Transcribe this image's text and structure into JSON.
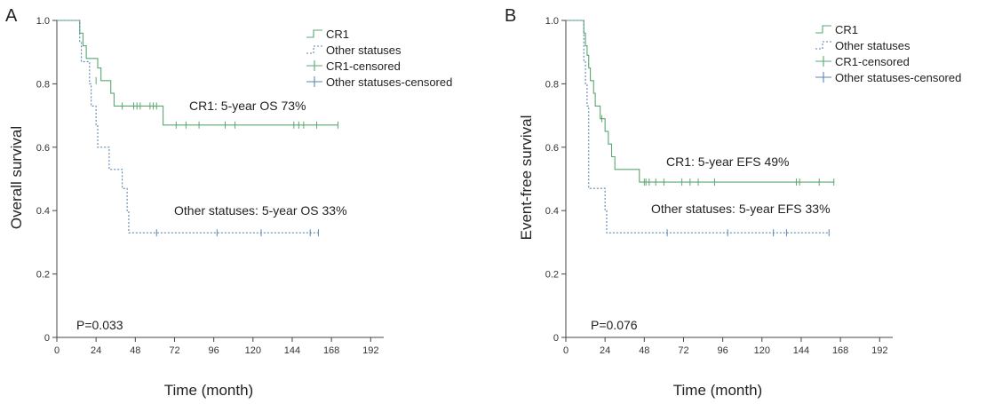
{
  "colors": {
    "cr1": "#5aa870",
    "other": "#5b85b0"
  },
  "chart_data": [
    {
      "type": "line",
      "panel_label": "A",
      "xlabel": "Time (month)",
      "ylabel": "Overall survival",
      "xlim": [
        0,
        200
      ],
      "ylim": [
        0,
        1.0
      ],
      "xticks": [
        0,
        24,
        48,
        72,
        96,
        120,
        144,
        168,
        192
      ],
      "yticks": [
        0,
        0.2,
        0.4,
        0.6,
        0.8,
        1.0
      ],
      "ytick_labels": [
        "0",
        "0.2",
        "0.4",
        "0.6",
        "0.8",
        "1.0"
      ],
      "legend": [
        "CR1",
        "Other statuses",
        "CR1-censored",
        "Other statuses-censored"
      ],
      "annotations": {
        "cr1": "CR1: 5-year OS 73%",
        "other": "Other statuses: 5-year OS 33%",
        "p": "P=0.033"
      },
      "series": [
        {
          "name": "CR1",
          "style": "solid",
          "steps": [
            [
              0,
              1.0
            ],
            [
              14,
              0.96
            ],
            [
              16,
              0.92
            ],
            [
              18,
              0.88
            ],
            [
              25,
              0.85
            ],
            [
              27,
              0.81
            ],
            [
              33,
              0.77
            ],
            [
              35,
              0.73
            ],
            [
              65,
              0.73
            ],
            [
              65,
              0.67
            ],
            [
              172,
              0.67
            ]
          ],
          "censored": [
            [
              24,
              0.81
            ],
            [
              40,
              0.73
            ],
            [
              47,
              0.73
            ],
            [
              49,
              0.73
            ],
            [
              51,
              0.73
            ],
            [
              57,
              0.73
            ],
            [
              59,
              0.73
            ],
            [
              61,
              0.73
            ],
            [
              73,
              0.67
            ],
            [
              79,
              0.67
            ],
            [
              87,
              0.67
            ],
            [
              103,
              0.67
            ],
            [
              109,
              0.67
            ],
            [
              145,
              0.67
            ],
            [
              148,
              0.67
            ],
            [
              151,
              0.67
            ],
            [
              159,
              0.67
            ],
            [
              172,
              0.67
            ]
          ]
        },
        {
          "name": "Other statuses",
          "style": "dashed",
          "steps": [
            [
              0,
              1.0
            ],
            [
              14,
              0.93
            ],
            [
              15,
              0.87
            ],
            [
              20,
              0.8
            ],
            [
              21,
              0.73
            ],
            [
              24,
              0.67
            ],
            [
              25,
              0.6
            ],
            [
              32,
              0.53
            ],
            [
              40,
              0.47
            ],
            [
              43,
              0.4
            ],
            [
              44,
              0.33
            ],
            [
              160,
              0.33
            ]
          ],
          "censored": [
            [
              61,
              0.33
            ],
            [
              98,
              0.33
            ],
            [
              125,
              0.33
            ],
            [
              155,
              0.33
            ],
            [
              160,
              0.33
            ]
          ]
        }
      ]
    },
    {
      "type": "line",
      "panel_label": "B",
      "xlabel": "Time (month)",
      "ylabel": "Event-free survival",
      "xlim": [
        0,
        200
      ],
      "ylim": [
        0,
        1.0
      ],
      "xticks": [
        0,
        24,
        48,
        72,
        96,
        120,
        144,
        168,
        192
      ],
      "yticks": [
        0,
        0.2,
        0.4,
        0.6,
        0.8,
        1.0
      ],
      "ytick_labels": [
        "0",
        "0.2",
        "0.4",
        "0.6",
        "0.8",
        "1.0"
      ],
      "legend": [
        "CR1",
        "Other statuses",
        "CR1-censored",
        "Other statuses-censored"
      ],
      "annotations": {
        "cr1": "CR1: 5-year EFS 49%",
        "other": "Other statuses: 5-year EFS 33%",
        "p": "P=0.076"
      },
      "series": [
        {
          "name": "CR1",
          "style": "solid",
          "steps": [
            [
              0,
              1.0
            ],
            [
              11,
              0.96
            ],
            [
              12,
              0.92
            ],
            [
              13,
              0.89
            ],
            [
              14,
              0.85
            ],
            [
              15,
              0.81
            ],
            [
              17,
              0.77
            ],
            [
              18,
              0.73
            ],
            [
              21,
              0.69
            ],
            [
              24,
              0.65
            ],
            [
              26,
              0.61
            ],
            [
              28,
              0.57
            ],
            [
              30,
              0.53
            ],
            [
              45,
              0.53
            ],
            [
              45,
              0.49
            ],
            [
              164,
              0.49
            ]
          ],
          "censored": [
            [
              22,
              0.69
            ],
            [
              48,
              0.49
            ],
            [
              49,
              0.49
            ],
            [
              51,
              0.49
            ],
            [
              55,
              0.49
            ],
            [
              60,
              0.49
            ],
            [
              71,
              0.49
            ],
            [
              76,
              0.49
            ],
            [
              81,
              0.49
            ],
            [
              91,
              0.49
            ],
            [
              141,
              0.49
            ],
            [
              143,
              0.49
            ],
            [
              155,
              0.49
            ],
            [
              164,
              0.49
            ]
          ]
        },
        {
          "name": "Other statuses",
          "style": "dashed",
          "steps": [
            [
              0,
              1.0
            ],
            [
              11,
              0.87
            ],
            [
              12,
              0.8
            ],
            [
              13,
              0.73
            ],
            [
              14,
              0.47
            ],
            [
              24,
              0.4
            ],
            [
              25,
              0.33
            ],
            [
              161,
              0.33
            ]
          ],
          "censored": [
            [
              62,
              0.33
            ],
            [
              99,
              0.33
            ],
            [
              127,
              0.33
            ],
            [
              135,
              0.33
            ],
            [
              161,
              0.33
            ]
          ]
        }
      ]
    }
  ]
}
